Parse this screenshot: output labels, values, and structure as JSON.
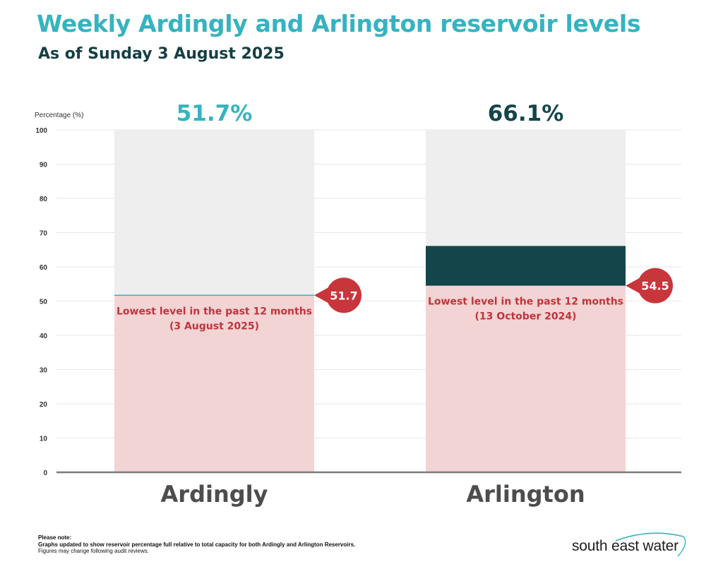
{
  "header": {
    "title": "Weekly Ardingly and Arlington reservoir levels",
    "subtitle": "As of Sunday 3 August 2025"
  },
  "footer": {
    "note_heading": "Please note:",
    "note_line1": "Graphs updated to show reservoir percentage full relative to total capacity for both Ardingly and Arlington Reservoirs.",
    "note_line2": "Figures may change following audit reviews.",
    "logo_text": "south east water"
  },
  "colors": {
    "ardingly": "#35b3c0",
    "arlington": "#14454a",
    "low_fill": "#f3d4d5",
    "empty_fill": "#eeeeee",
    "marker": "#c8353a",
    "low_text": "#c0343a"
  },
  "chart_data": {
    "type": "bar",
    "ylabel": "Percentage (%)",
    "ylim": [
      0,
      100
    ],
    "yticks": [
      0,
      10,
      20,
      30,
      40,
      50,
      60,
      70,
      80,
      90,
      100
    ],
    "grid": true,
    "categories": [
      "Ardingly",
      "Arlington"
    ],
    "values": [
      51.7,
      66.1
    ],
    "value_labels": [
      "51.7%",
      "66.1%"
    ],
    "lowest_level": {
      "values": [
        51.7,
        54.5
      ],
      "marker_labels": [
        "51.7",
        "54.5"
      ],
      "label_line1": [
        "Lowest level in the past 12 months",
        "Lowest level in the past 12 months"
      ],
      "label_line2": [
        "(3 August 2025)",
        "(13 October 2024)"
      ]
    }
  }
}
